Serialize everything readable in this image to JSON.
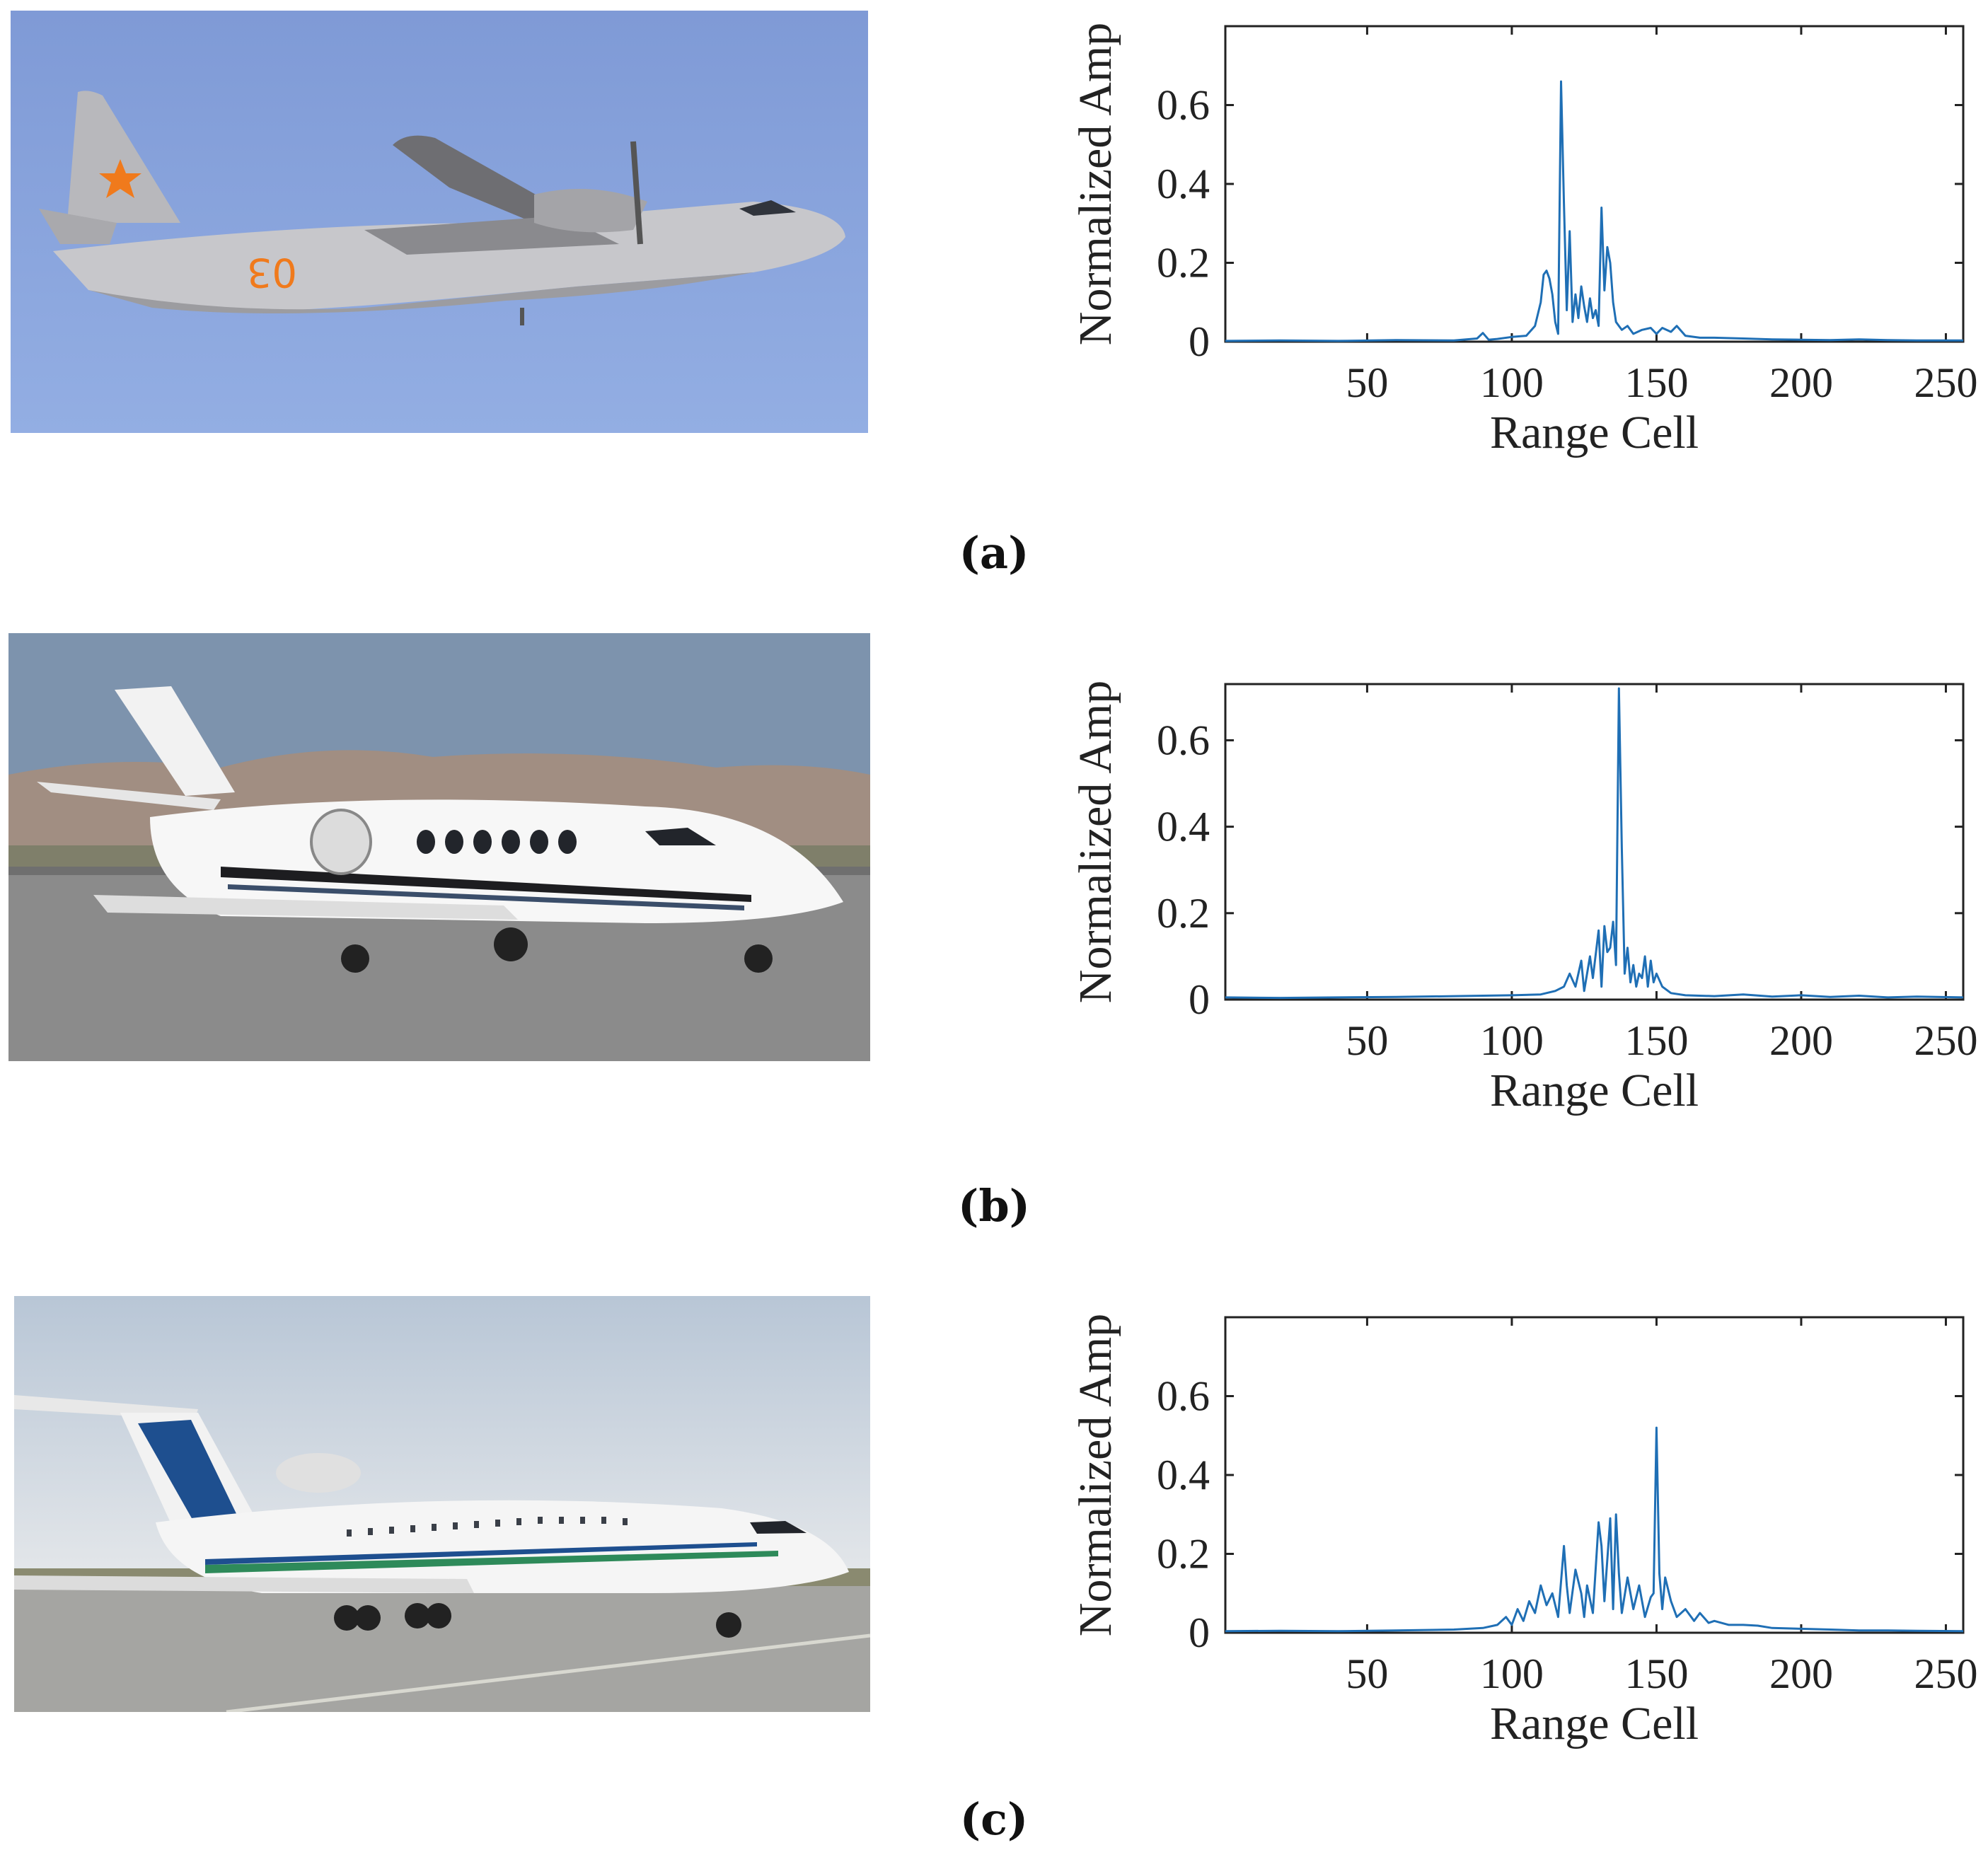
{
  "figure": {
    "panels": [
      {
        "label": "(a)",
        "photo": "Propeller military transport aircraft with red star insignia, in flight"
      },
      {
        "label": "(b)",
        "photo": "White business jet parked on runway"
      },
      {
        "label": "(c)",
        "photo": "White tri-jet passenger airliner with blue and green stripes on apron"
      }
    ]
  },
  "chart_data": [
    {
      "type": "line",
      "panel": "(a)",
      "xlabel": "Range Cell",
      "ylabel": "Normalized Amp",
      "xlim": [
        1,
        256
      ],
      "ylim": [
        0,
        0.8
      ],
      "xticks": [
        50,
        100,
        150,
        200,
        250
      ],
      "yticks": [
        0,
        0.2,
        0.4,
        0.6
      ],
      "ytick_labels": [
        "0",
        "0.2",
        "0.4",
        "0.6"
      ],
      "line_color": "#1f6fb5",
      "x": [
        1,
        20,
        40,
        60,
        80,
        88,
        90,
        92,
        95,
        100,
        105,
        108,
        110,
        111,
        112,
        113,
        114,
        115,
        116,
        117,
        118,
        119,
        120,
        121,
        122,
        123,
        124,
        125,
        126,
        127,
        128,
        129,
        130,
        131,
        132,
        133,
        134,
        135,
        136,
        137,
        138,
        140,
        142,
        145,
        148,
        150,
        152,
        155,
        157,
        160,
        165,
        170,
        180,
        190,
        200,
        210,
        220,
        230,
        240,
        256
      ],
      "y": [
        0.002,
        0.003,
        0.002,
        0.004,
        0.003,
        0.008,
        0.022,
        0.005,
        0.007,
        0.012,
        0.015,
        0.04,
        0.1,
        0.17,
        0.18,
        0.16,
        0.12,
        0.05,
        0.02,
        0.66,
        0.35,
        0.08,
        0.28,
        0.05,
        0.12,
        0.06,
        0.14,
        0.09,
        0.05,
        0.11,
        0.06,
        0.08,
        0.04,
        0.34,
        0.13,
        0.24,
        0.2,
        0.1,
        0.05,
        0.04,
        0.03,
        0.04,
        0.02,
        0.03,
        0.035,
        0.02,
        0.035,
        0.025,
        0.04,
        0.015,
        0.01,
        0.01,
        0.008,
        0.006,
        0.005,
        0.004,
        0.006,
        0.004,
        0.003,
        0.003
      ]
    },
    {
      "type": "line",
      "panel": "(b)",
      "xlabel": "Range Cell",
      "ylabel": "Normalized Amp",
      "xlim": [
        1,
        256
      ],
      "ylim": [
        0,
        0.73
      ],
      "xticks": [
        50,
        100,
        150,
        200,
        250
      ],
      "yticks": [
        0,
        0.2,
        0.4,
        0.6
      ],
      "ytick_labels": [
        "0",
        "0.2",
        "0.4",
        "0.6"
      ],
      "line_color": "#1f6fb5",
      "x": [
        1,
        20,
        40,
        60,
        80,
        100,
        110,
        115,
        118,
        120,
        122,
        124,
        125,
        127,
        128,
        130,
        131,
        132,
        133,
        134,
        135,
        136,
        137,
        138,
        139,
        140,
        141,
        142,
        143,
        144,
        145,
        146,
        147,
        148,
        149,
        150,
        152,
        155,
        160,
        170,
        180,
        190,
        200,
        210,
        220,
        230,
        240,
        256
      ],
      "y": [
        0.005,
        0.004,
        0.005,
        0.006,
        0.008,
        0.01,
        0.012,
        0.02,
        0.03,
        0.06,
        0.03,
        0.09,
        0.02,
        0.1,
        0.05,
        0.16,
        0.03,
        0.17,
        0.11,
        0.12,
        0.18,
        0.08,
        0.72,
        0.35,
        0.06,
        0.12,
        0.04,
        0.08,
        0.03,
        0.06,
        0.05,
        0.1,
        0.03,
        0.09,
        0.04,
        0.06,
        0.03,
        0.015,
        0.01,
        0.008,
        0.012,
        0.007,
        0.01,
        0.006,
        0.009,
        0.005,
        0.007,
        0.005
      ]
    },
    {
      "type": "line",
      "panel": "(c)",
      "xlabel": "Range Cell",
      "ylabel": "Normalized Amp",
      "xlim": [
        1,
        256
      ],
      "ylim": [
        0,
        0.8
      ],
      "xticks": [
        50,
        100,
        150,
        200,
        250
      ],
      "yticks": [
        0,
        0.2,
        0.4,
        0.6
      ],
      "ytick_labels": [
        "0",
        "0.2",
        "0.4",
        "0.6"
      ],
      "line_color": "#1f6fb5",
      "x": [
        1,
        20,
        40,
        60,
        80,
        90,
        95,
        98,
        100,
        102,
        104,
        106,
        108,
        110,
        112,
        114,
        116,
        118,
        119,
        120,
        122,
        124,
        125,
        126,
        128,
        130,
        131,
        132,
        134,
        135,
        136,
        137,
        138,
        140,
        142,
        144,
        146,
        148,
        149,
        150,
        151,
        152,
        153,
        155,
        157,
        160,
        163,
        165,
        168,
        170,
        175,
        180,
        185,
        190,
        200,
        210,
        220,
        230,
        240,
        256
      ],
      "y": [
        0.004,
        0.005,
        0.004,
        0.006,
        0.008,
        0.012,
        0.02,
        0.04,
        0.02,
        0.06,
        0.03,
        0.08,
        0.05,
        0.12,
        0.07,
        0.1,
        0.04,
        0.22,
        0.12,
        0.05,
        0.16,
        0.1,
        0.04,
        0.12,
        0.05,
        0.28,
        0.22,
        0.08,
        0.29,
        0.06,
        0.3,
        0.15,
        0.05,
        0.14,
        0.06,
        0.12,
        0.04,
        0.09,
        0.1,
        0.52,
        0.15,
        0.06,
        0.14,
        0.08,
        0.04,
        0.06,
        0.03,
        0.05,
        0.025,
        0.03,
        0.02,
        0.02,
        0.018,
        0.012,
        0.01,
        0.008,
        0.006,
        0.006,
        0.005,
        0.004
      ]
    }
  ]
}
